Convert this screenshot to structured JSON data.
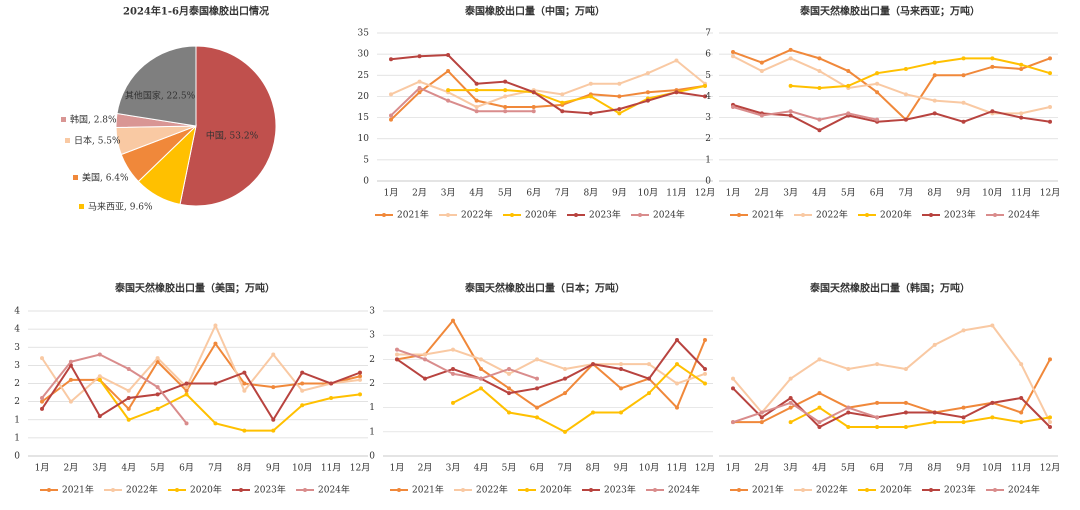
{
  "chart_data": [
    {
      "type": "pie",
      "title": "2024年1-6月泰国橡胶出口情况",
      "values": [
        53.2,
        9.6,
        6.4,
        5.5,
        2.8,
        22.5
      ],
      "value_labels": [
        "中国, 53.2%",
        "马来西亚, 9.6%",
        "美国, 6.4%",
        "日本, 5.5%",
        "韩国, 2.8%",
        "其他国家, 22.5%"
      ],
      "colors": [
        "#c0504d",
        "#ffc000",
        "#f0883a",
        "#f9c9a3",
        "#d99694",
        "#7f7f7f"
      ]
    },
    {
      "type": "line",
      "title": "泰国橡胶出口量（中国；万吨）",
      "categories": [
        "1月",
        "2月",
        "3月",
        "4月",
        "5月",
        "6月",
        "7月",
        "8月",
        "9月",
        "10月",
        "11月",
        "12月"
      ],
      "ylim": [
        0,
        35
      ],
      "yticks": [
        0,
        5,
        10,
        15,
        20,
        25,
        30,
        35
      ],
      "grid": true,
      "series": [
        {
          "name": "2021年",
          "color": "#f0883a",
          "values": [
            14.5,
            21,
            26,
            19,
            17.5,
            17.5,
            18,
            20.5,
            20,
            21,
            21.5,
            22.5
          ]
        },
        {
          "name": "2022年",
          "color": "#f9c9a3",
          "values": [
            20.5,
            23.5,
            21,
            17.5,
            20,
            21.5,
            20.5,
            23,
            23,
            25.5,
            28.5,
            23
          ]
        },
        {
          "name": "2020年",
          "color": "#ffc000",
          "values": [
            null,
            null,
            21.5,
            21.5,
            21.5,
            21,
            18.5,
            20,
            16,
            19.5,
            21,
            22.5
          ]
        },
        {
          "name": "2023年",
          "color": "#b8433f",
          "values": [
            28.8,
            29.5,
            29.8,
            23,
            23.5,
            21,
            16.5,
            16,
            17,
            19,
            21,
            20
          ]
        },
        {
          "name": "2024年",
          "color": "#d98c8c",
          "values": [
            15.5,
            22,
            19,
            16.5,
            16.5,
            16.5,
            null,
            null,
            null,
            null,
            null,
            null
          ]
        }
      ]
    },
    {
      "type": "line",
      "title": "泰国天然橡胶出口量（马来西亚；万吨）",
      "categories": [
        "1月",
        "2月",
        "3月",
        "4月",
        "5月",
        "6月",
        "7月",
        "8月",
        "9月",
        "10月",
        "11月",
        "12月"
      ],
      "ylim": [
        0,
        7
      ],
      "yticks": [
        0,
        1,
        2,
        3,
        4,
        5,
        6,
        7
      ],
      "grid": true,
      "series": [
        {
          "name": "2021年",
          "color": "#f0883a",
          "values": [
            6.1,
            5.6,
            6.2,
            5.8,
            5.2,
            4.2,
            2.9,
            5.0,
            5.0,
            5.4,
            5.3,
            5.8
          ]
        },
        {
          "name": "2022年",
          "color": "#f9c9a3",
          "values": [
            5.9,
            5.2,
            5.8,
            5.2,
            4.4,
            4.6,
            4.1,
            3.8,
            3.7,
            3.2,
            3.2,
            3.5
          ]
        },
        {
          "name": "2020年",
          "color": "#ffc000",
          "values": [
            null,
            null,
            4.5,
            4.4,
            4.5,
            5.1,
            5.3,
            5.6,
            5.8,
            5.8,
            5.5,
            5.1
          ]
        },
        {
          "name": "2023年",
          "color": "#b8433f",
          "values": [
            3.6,
            3.2,
            3.1,
            2.4,
            3.1,
            2.8,
            2.9,
            3.2,
            2.8,
            3.3,
            3.0,
            2.8
          ]
        },
        {
          "name": "2024年",
          "color": "#d98c8c",
          "values": [
            3.5,
            3.1,
            3.3,
            2.9,
            3.2,
            2.9,
            null,
            null,
            null,
            null,
            null,
            null
          ]
        }
      ]
    },
    {
      "type": "line",
      "title": "泰国天然橡胶出口量（美国；万吨）",
      "categories": [
        "1月",
        "2月",
        "3月",
        "4月",
        "5月",
        "6月",
        "7月",
        "8月",
        "9月",
        "10月",
        "11月",
        "12月"
      ],
      "ylim": [
        0,
        4
      ],
      "yticks": [
        0,
        {
          "value": 0.5,
          "label": "1"
        },
        1,
        {
          "value": 1.5,
          "label": "2"
        },
        2,
        {
          "value": 2.5,
          "label": "3"
        },
        3,
        {
          "value": 3.5,
          "label": "4"
        },
        4
      ],
      "grid": true,
      "series": [
        {
          "name": "2021年",
          "color": "#f0883a",
          "values": [
            1.5,
            2.1,
            2.1,
            1.3,
            2.6,
            1.8,
            3.1,
            2.0,
            1.9,
            2.0,
            2.0,
            2.2
          ]
        },
        {
          "name": "2022年",
          "color": "#f9c9a3",
          "values": [
            2.7,
            1.5,
            2.2,
            1.8,
            2.7,
            1.9,
            3.6,
            1.8,
            2.8,
            1.8,
            2.0,
            2.1
          ]
        },
        {
          "name": "2020年",
          "color": "#ffc000",
          "values": [
            null,
            null,
            2.1,
            1.0,
            1.3,
            1.7,
            0.9,
            0.7,
            0.7,
            1.4,
            1.6,
            1.7
          ]
        },
        {
          "name": "2023年",
          "color": "#b8433f",
          "values": [
            1.3,
            2.5,
            1.1,
            1.6,
            1.7,
            2.0,
            2.0,
            2.3,
            1.0,
            2.3,
            2.0,
            2.3
          ]
        },
        {
          "name": "2024年",
          "color": "#d98c8c",
          "values": [
            1.6,
            2.6,
            2.8,
            2.4,
            1.9,
            0.9,
            null,
            null,
            null,
            null,
            null,
            null
          ]
        }
      ]
    },
    {
      "type": "line",
      "title": "泰国天然橡胶出口量（日本；万吨）",
      "categories": [
        "1月",
        "2月",
        "3月",
        "4月",
        "5月",
        "6月",
        "7月",
        "8月",
        "9月",
        "10月",
        "11月",
        "12月"
      ],
      "ylim": [
        0,
        3
      ],
      "yticks": [
        0,
        {
          "value": 0.5,
          "label": "1"
        },
        1,
        {
          "value": 1.5,
          "label": "2"
        },
        2,
        {
          "value": 2.5,
          "label": "3"
        },
        3
      ],
      "grid": true,
      "series": [
        {
          "name": "2021年",
          "color": "#f0883a",
          "values": [
            2.0,
            2.1,
            2.8,
            1.8,
            1.4,
            1.0,
            1.3,
            1.9,
            1.4,
            1.6,
            1.0,
            2.4
          ]
        },
        {
          "name": "2022年",
          "color": "#f9c9a3",
          "values": [
            2.1,
            2.1,
            2.2,
            2.0,
            1.7,
            2.0,
            1.8,
            1.9,
            1.9,
            1.9,
            1.5,
            1.7
          ]
        },
        {
          "name": "2020年",
          "color": "#ffc000",
          "values": [
            null,
            null,
            1.1,
            1.4,
            0.9,
            0.8,
            0.5,
            0.9,
            0.9,
            1.3,
            1.9,
            1.5
          ]
        },
        {
          "name": "2023年",
          "color": "#b8433f",
          "values": [
            2.0,
            1.6,
            1.8,
            1.6,
            1.3,
            1.4,
            1.6,
            1.9,
            1.8,
            1.6,
            2.4,
            1.8
          ]
        },
        {
          "name": "2024年",
          "color": "#d98c8c",
          "values": [
            2.2,
            2.0,
            1.7,
            1.6,
            1.8,
            1.6,
            null,
            null,
            null,
            null,
            null,
            null
          ]
        }
      ]
    },
    {
      "type": "line",
      "title": "泰国天然橡胶出口量（韩国；万吨）",
      "categories": [
        "1月",
        "2月",
        "3月",
        "4月",
        "5月",
        "6月",
        "7月",
        "8月",
        "9月",
        "10月",
        "11月",
        "12月"
      ],
      "ylim": [
        0,
        3
      ],
      "grid": false,
      "series": [
        {
          "name": "2021年",
          "color": "#f0883a",
          "values": [
            0.7,
            0.7,
            1.0,
            1.3,
            1.0,
            1.1,
            1.1,
            0.9,
            1.0,
            1.1,
            0.9,
            2.0
          ]
        },
        {
          "name": "2022年",
          "color": "#f9c9a3",
          "values": [
            1.6,
            0.9,
            1.6,
            2.0,
            1.8,
            1.9,
            1.8,
            2.3,
            2.6,
            2.7,
            1.9,
            0.7
          ]
        },
        {
          "name": "2020年",
          "color": "#ffc000",
          "values": [
            null,
            null,
            0.7,
            1.0,
            0.6,
            0.6,
            0.6,
            0.7,
            0.7,
            0.8,
            0.7,
            0.8
          ]
        },
        {
          "name": "2023年",
          "color": "#b8433f",
          "values": [
            1.4,
            0.8,
            1.2,
            0.6,
            0.9,
            0.8,
            0.9,
            0.9,
            0.8,
            1.1,
            1.2,
            0.6
          ]
        },
        {
          "name": "2024年",
          "color": "#d98c8c",
          "values": [
            0.7,
            0.9,
            1.1,
            0.7,
            1.0,
            0.8,
            null,
            null,
            null,
            null,
            null,
            null
          ]
        }
      ]
    }
  ]
}
